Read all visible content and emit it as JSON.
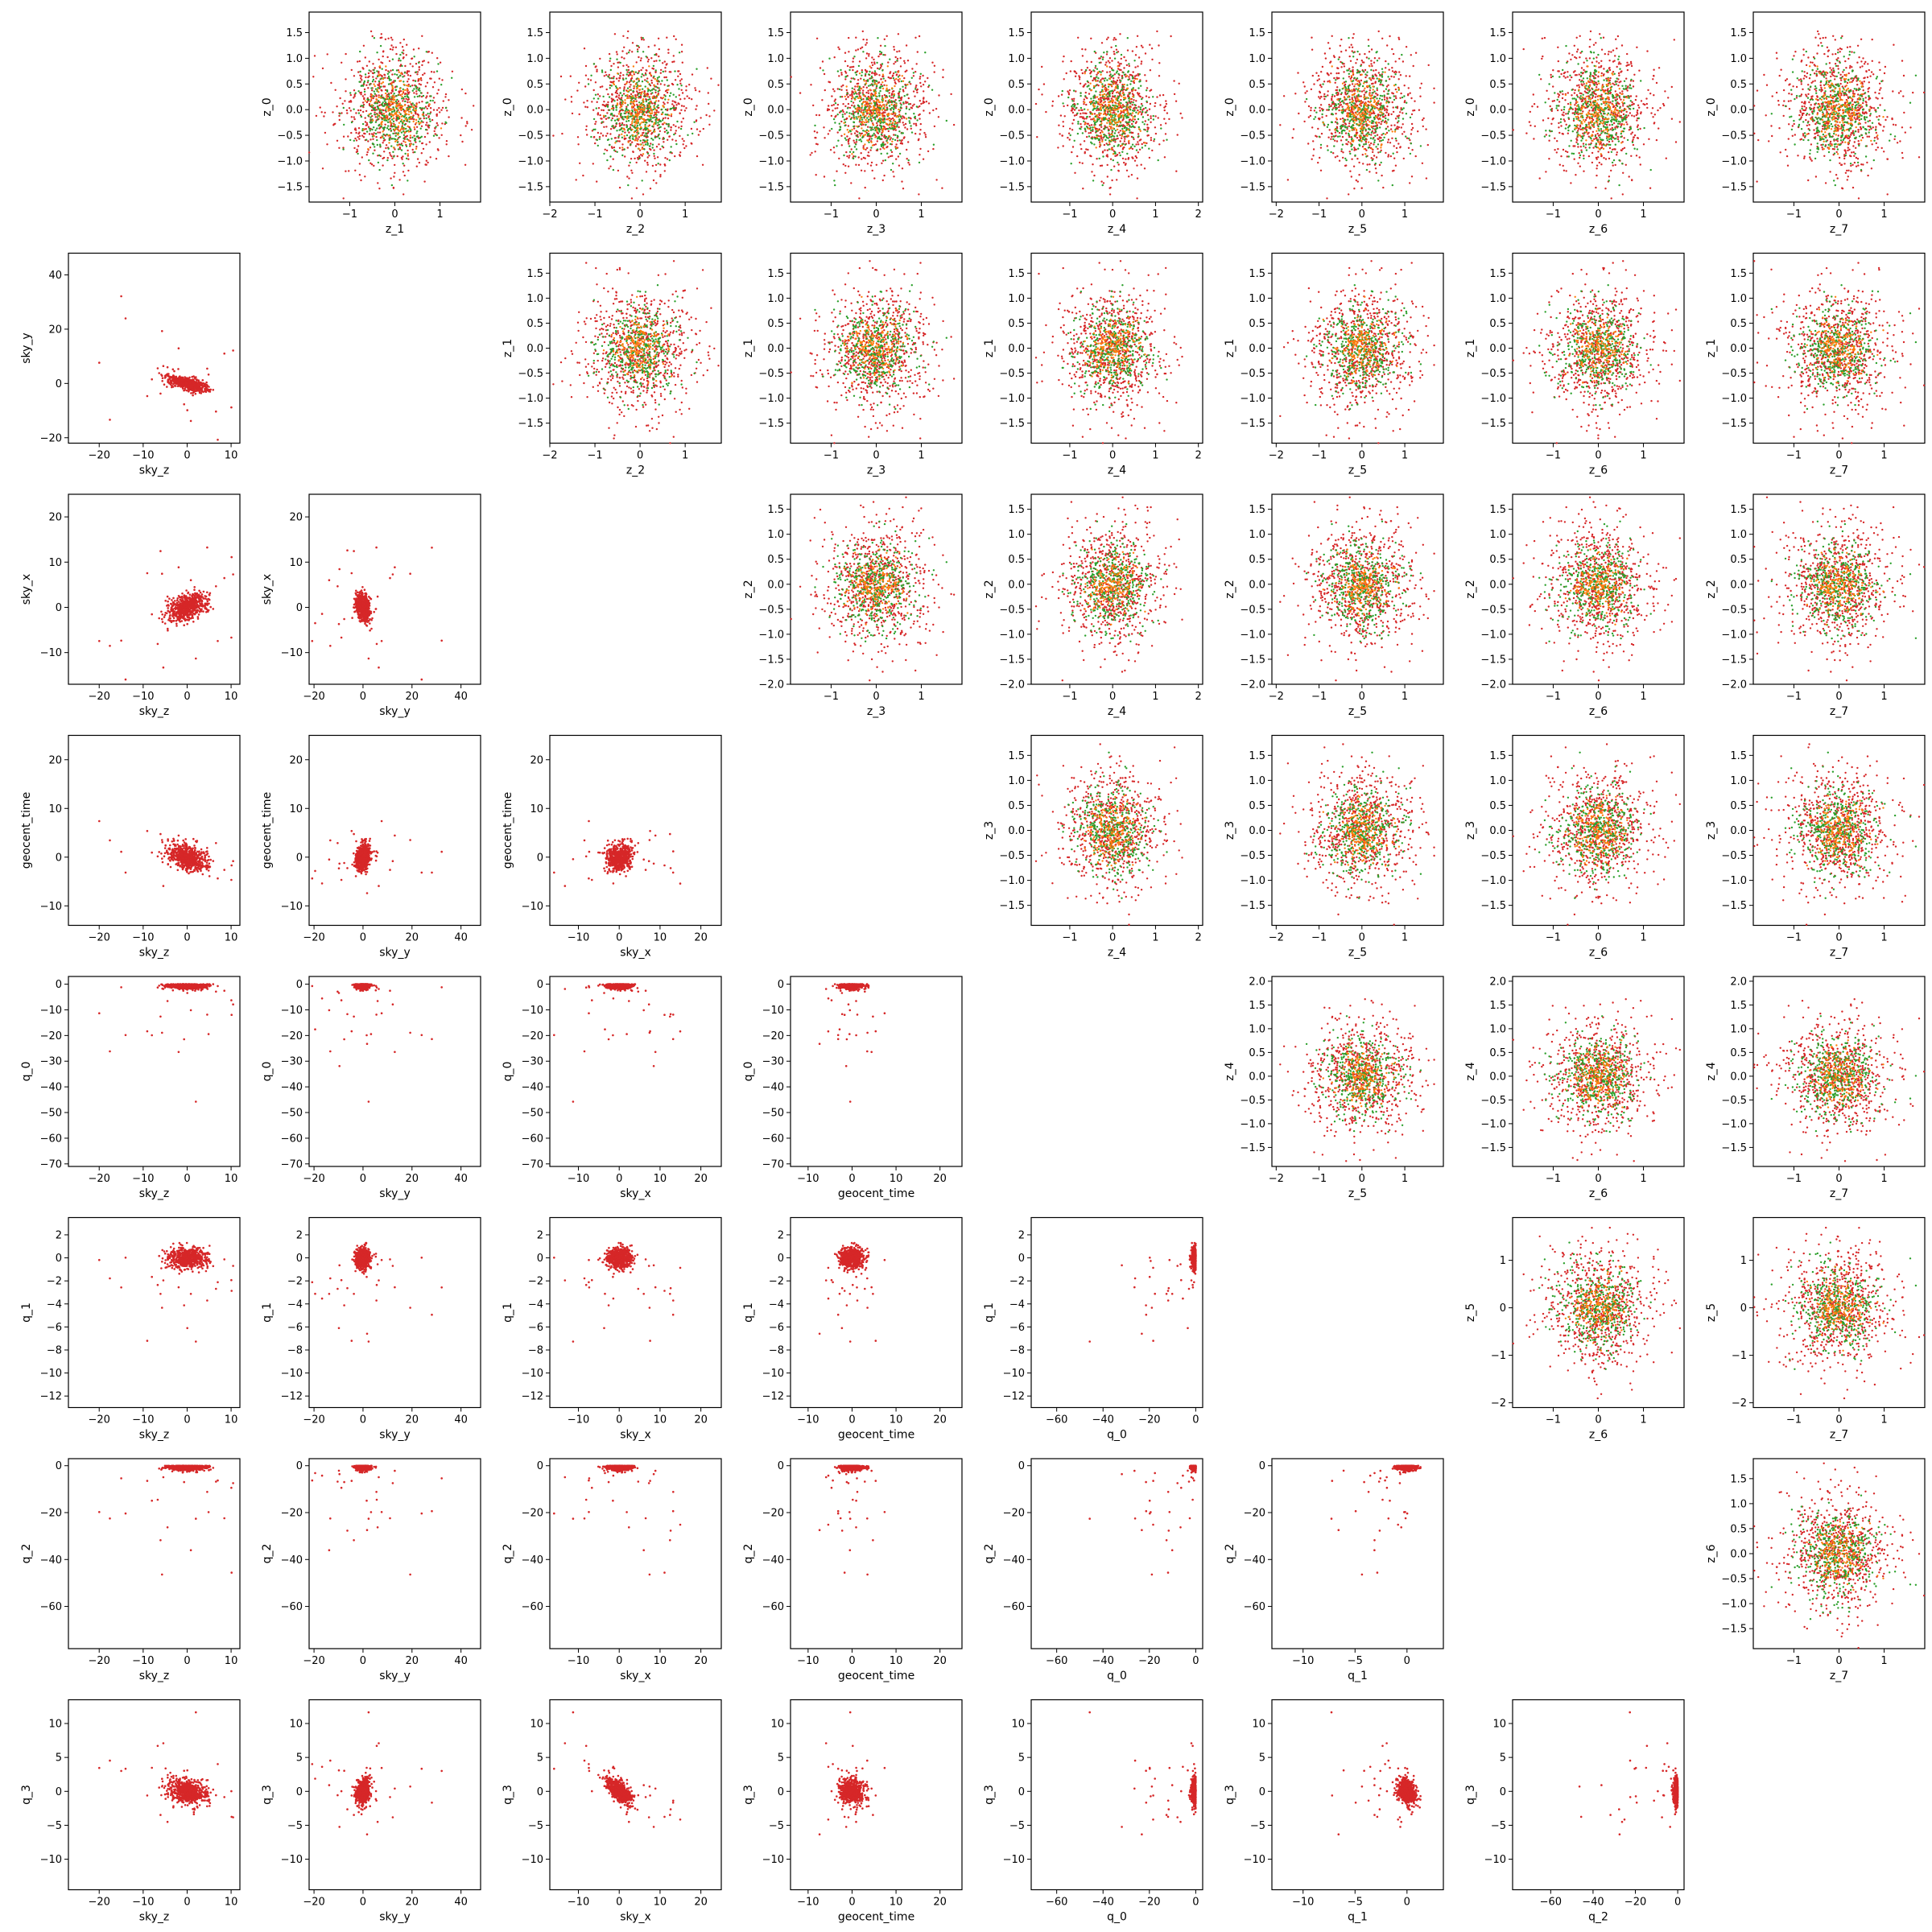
{
  "chart_data": {
    "type": "scatter",
    "layout": "corner-pairplot",
    "grid_size": 8,
    "colors": {
      "posterior": "#d62728",
      "latent_green": "#2ca02c",
      "latent_orange": "#ff7f0e",
      "axes": "#000000",
      "background": "#ffffff"
    },
    "physical_params": [
      "sky_z",
      "sky_y",
      "sky_x",
      "geocent_time",
      "q_0",
      "q_1",
      "q_2",
      "q_3"
    ],
    "latent_params": [
      "z_0",
      "z_1",
      "z_2",
      "z_3",
      "z_4",
      "z_5",
      "z_6",
      "z_7"
    ],
    "axis_ranges": {
      "sky_z": [
        -27,
        12
      ],
      "sky_y": [
        -22,
        48
      ],
      "sky_x": [
        -17,
        25
      ],
      "geocent_time": [
        -14,
        25
      ],
      "q_0": [
        -71,
        3
      ],
      "q_1": [
        -13,
        3.5
      ],
      "q_2": [
        -78,
        3
      ],
      "q_3": [
        -14.5,
        13.5
      ],
      "z_0": [
        -1.8,
        1.9
      ],
      "z_1": [
        -1.9,
        1.9
      ],
      "z_2": [
        -2.0,
        1.8
      ],
      "z_3": [
        -1.9,
        1.9
      ],
      "z_4": [
        -1.9,
        2.1
      ],
      "z_5": [
        -2.1,
        1.9
      ],
      "z_6": [
        -1.9,
        1.9
      ],
      "z_7": [
        -1.9,
        1.9
      ]
    },
    "ticks": {
      "sky_z": [
        "-20",
        "-10",
        "0",
        "10"
      ],
      "sky_y": [
        "-20",
        "0",
        "20",
        "40"
      ],
      "sky_x": [
        "-10",
        "0",
        "10",
        "20"
      ],
      "geocent_time": [
        "-10",
        "0",
        "10",
        "20"
      ],
      "q_0": [
        "-70",
        "-60",
        "-50",
        "-40",
        "-30",
        "-20",
        "-10",
        "0"
      ],
      "q_0_x": [
        "-60",
        "-40",
        "-20",
        "0"
      ],
      "q_1": [
        "-12",
        "-10",
        "-8",
        "-6",
        "-4",
        "-2",
        "0",
        "2"
      ],
      "q_1_x": [
        "-10",
        "-5",
        "0"
      ],
      "q_2": [
        "-60",
        "-40",
        "-20",
        "0"
      ],
      "q_2_x": [
        "-60",
        "-40",
        "-20",
        "0"
      ],
      "q_3": [
        "-10",
        "-5",
        "0",
        "5",
        "10"
      ],
      "z_y": [
        "-1.5",
        "-1.0",
        "-0.5",
        "0.0",
        "0.5",
        "1.0",
        "1.5"
      ],
      "z_2_y": [
        "-2.0",
        "-1.5",
        "-1.0",
        "-0.5",
        "0.0",
        "0.5",
        "1.0",
        "1.5"
      ],
      "z_4_y": [
        "-1.5",
        "-1.0",
        "-0.5",
        "0.0",
        "0.5",
        "1.0",
        "1.5",
        "2.0"
      ],
      "z_5_y": [
        "-2",
        "-1",
        "0",
        "1"
      ],
      "z_x_1": [
        "-1",
        "0",
        "1"
      ],
      "z_x_2": [
        "-2",
        "-1",
        "0",
        "1"
      ],
      "z_x_4": [
        "-1",
        "0",
        "1",
        "2"
      ]
    },
    "lower_triangle": "posterior samples of physical parameters (row: y-param, col: x-param), single red series",
    "upper_triangle": "latent z_i vs z_j samples, overlaid red, green and orange series"
  }
}
